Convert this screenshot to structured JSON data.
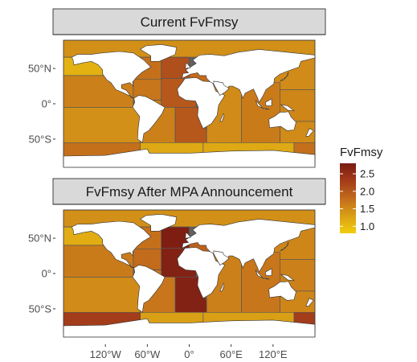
{
  "chart_data": {
    "type": "map",
    "fill_variable": "FvFmsy",
    "legend": {
      "title": "FvFmsy",
      "placement": "right",
      "breaks": [
        "2.5",
        "2.0",
        "1.5",
        "1.0"
      ],
      "break_values": [
        2.5,
        2.0,
        1.5,
        1.0
      ],
      "range": [
        0.8,
        2.8
      ],
      "colors": [
        "#f2cc0c",
        "#d9a016",
        "#c26b1c",
        "#a33c1a",
        "#7a1b12"
      ]
    },
    "x_axis": {
      "ticks": [
        "120°W",
        "60°W",
        "0°",
        "60°E",
        "120°E"
      ],
      "tick_values": [
        -120,
        -60,
        0,
        60,
        120
      ],
      "range": [
        -180,
        180
      ]
    },
    "y_axis": {
      "ticks": [
        "50°N",
        "0°",
        "50°S"
      ],
      "tick_values": [
        50,
        0,
        -50
      ],
      "range": [
        -90,
        90
      ]
    },
    "colors": {
      "land": "#ffffff",
      "no_data": "#606060",
      "region_border": "#555555",
      "strip_bg": "#d9d9d9"
    },
    "panels": [
      {
        "title": "Current FvFmsy",
        "regions": [
          {
            "name": "Arctic",
            "value": 1.45
          },
          {
            "name": "NE Pacific",
            "value": 1.1
          },
          {
            "name": "NW Pacific",
            "value": 1.5
          },
          {
            "name": "E Central Pacific",
            "value": 1.6
          },
          {
            "name": "W Central Pacific",
            "value": 1.55
          },
          {
            "name": "SE Pacific",
            "value": 1.45
          },
          {
            "name": "SW Pacific",
            "value": 1.5
          },
          {
            "name": "NW Atlantic",
            "value": 1.75
          },
          {
            "name": "NE Atlantic",
            "value": 2.1
          },
          {
            "name": "W Central Atlantic",
            "value": 1.7
          },
          {
            "name": "E Central Atlantic",
            "value": 2.0
          },
          {
            "name": "SW Atlantic",
            "value": 1.6
          },
          {
            "name": "SE Atlantic",
            "value": 2.0
          },
          {
            "name": "Mediterranean",
            "value": 1.8
          },
          {
            "name": "W Indian Ocean",
            "value": 1.5
          },
          {
            "name": "E Indian Ocean",
            "value": 1.65
          },
          {
            "name": "Southern Ocean Atlantic",
            "value": 1.2
          },
          {
            "name": "Southern Ocean Indian",
            "value": 1.2
          },
          {
            "name": "Southern Ocean Pacific",
            "value": 1.75
          }
        ]
      },
      {
        "title": "FvFmsy After MPA Announcement",
        "regions": [
          {
            "name": "Arctic",
            "value": 1.45
          },
          {
            "name": "NE Pacific",
            "value": 1.15
          },
          {
            "name": "NW Pacific",
            "value": 1.55
          },
          {
            "name": "E Central Pacific",
            "value": 1.65
          },
          {
            "name": "W Central Pacific",
            "value": 1.6
          },
          {
            "name": "SE Pacific",
            "value": 1.5
          },
          {
            "name": "SW Pacific",
            "value": 1.55
          },
          {
            "name": "NW Atlantic",
            "value": 1.75
          },
          {
            "name": "NE Atlantic",
            "value": 2.75
          },
          {
            "name": "W Central Atlantic",
            "value": 1.8
          },
          {
            "name": "E Central Atlantic",
            "value": 2.7
          },
          {
            "name": "SW Atlantic",
            "value": 1.7
          },
          {
            "name": "SE Atlantic",
            "value": 2.7
          },
          {
            "name": "Mediterranean",
            "value": 1.9
          },
          {
            "name": "W Indian Ocean",
            "value": 1.6
          },
          {
            "name": "E Indian Ocean",
            "value": 1.7
          },
          {
            "name": "Southern Ocean Atlantic",
            "value": 1.3
          },
          {
            "name": "Southern Ocean Indian",
            "value": 1.3
          },
          {
            "name": "Southern Ocean Pacific",
            "value": 2.3
          }
        ]
      }
    ]
  }
}
